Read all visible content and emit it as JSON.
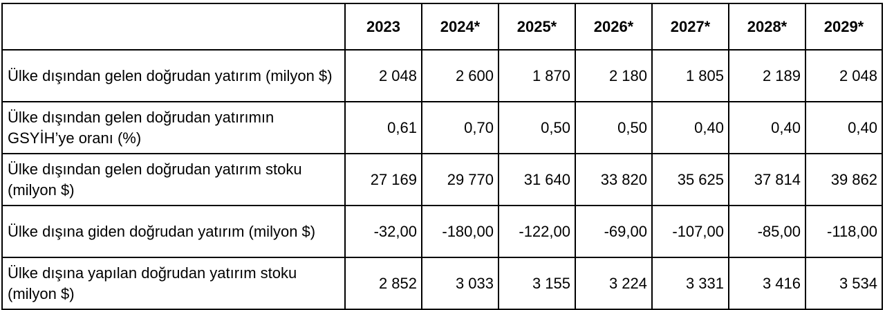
{
  "table": {
    "corner": "",
    "years": [
      "2023",
      "2024*",
      "2025*",
      "2026*",
      "2027*",
      "2028*",
      "2029*"
    ],
    "rows": [
      {
        "label": "Ülke dışından gelen doğrudan yatırım (milyon $)",
        "values": [
          "2 048",
          "2 600",
          "1 870",
          "2 180",
          "1 805",
          "2 189",
          "2 048"
        ]
      },
      {
        "label": "Ülke dışından gelen doğrudan yatırımın GSYİH’ye oranı (%)",
        "values": [
          "0,61",
          "0,70",
          "0,50",
          "0,50",
          "0,40",
          "0,40",
          "0,40"
        ]
      },
      {
        "label": "Ülke dışından gelen doğrudan yatırım stoku (milyon $)",
        "values": [
          "27 169",
          "29 770",
          "31 640",
          "33 820",
          "35 625",
          "37 814",
          "39 862"
        ]
      },
      {
        "label": "Ülke dışına giden doğrudan yatırım (milyon $)",
        "values": [
          "-32,00",
          "-180,00",
          "-122,00",
          "-69,00",
          "-107,00",
          "-85,00",
          "-118,00"
        ]
      },
      {
        "label": "Ülke dışına yapılan doğrudan yatırım stoku (milyon $)",
        "values": [
          "2 852",
          "3 033",
          "3 155",
          "3 224",
          "3 331",
          "3 416",
          "3 534"
        ]
      }
    ]
  }
}
